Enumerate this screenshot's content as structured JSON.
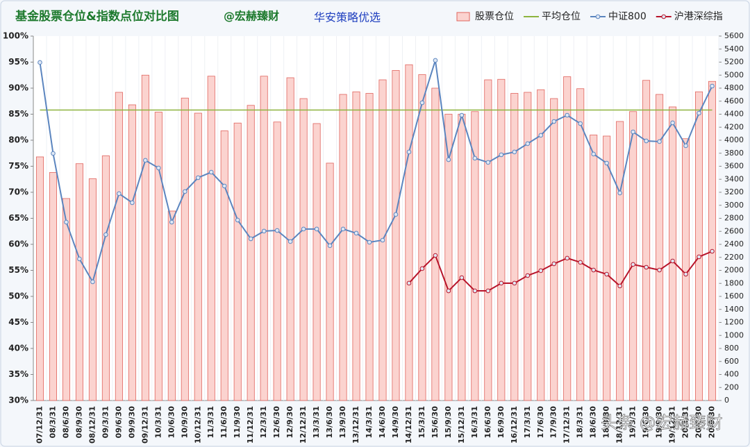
{
  "chart_data": {
    "type": "bar",
    "title": "基金股票仓位&指数点位对比图",
    "subtitle": "@宏赫臻财",
    "strategy": "华安策略优选",
    "watermark": "头条 @宏赫臻财",
    "categories": [
      "07/12/31",
      "08/3/31",
      "08/6/30",
      "08/9/30",
      "08/12/31",
      "09/3/31",
      "09/6/30",
      "09/9/30",
      "09/12/31",
      "10/3/31",
      "10/6/30",
      "10/9/30",
      "10/12/31",
      "11/3/31",
      "11/6/30",
      "11/9/30",
      "11/12/31",
      "12/3/31",
      "12/6/30",
      "12/9/30",
      "12/12/31",
      "13/3/31",
      "13/6/30",
      "13/9/30",
      "13/12/31",
      "14/3/31",
      "14/6/30",
      "14/9/30",
      "14/12/31",
      "15/3/31",
      "15/6/30",
      "15/9/30",
      "15/12/31",
      "16/3/31",
      "16/6/30",
      "16/9/30",
      "16/12/31",
      "17/3/31",
      "17/6/30",
      "17/9/30",
      "17/12/31",
      "18/3/31",
      "18/6/30",
      "18/9/30",
      "18/12/31",
      "19/3/31",
      "19/6/30",
      "19/9/30",
      "19/12/31",
      "20/3/31",
      "20/6/30",
      "20/9/30"
    ],
    "series": [
      {
        "name": "股票仓位",
        "type": "bar",
        "color": "#fbd3cf",
        "values": [
          76.8,
          73.8,
          68.8,
          75.5,
          72.6,
          77,
          89.2,
          86.8,
          92.5,
          85.4,
          66.4,
          88.1,
          85.2,
          92.3,
          81.8,
          83.3,
          86.7,
          92.3,
          83.5,
          92,
          88,
          83.2,
          75.6,
          88.8,
          89.3,
          89,
          91.6,
          93.4,
          94.5,
          92.6,
          90,
          85,
          85,
          85.5,
          91.6,
          91.7,
          89,
          89.2,
          89.7,
          88,
          92.2,
          89.9,
          81,
          80.8,
          83.6,
          85.5,
          91.5,
          88.8,
          86.4,
          80.3,
          89.3,
          91.3
        ]
      },
      {
        "name": "平均仓位",
        "type": "hline",
        "color": "#8db43e",
        "value": 85.8
      },
      {
        "name": "中证800",
        "type": "line",
        "axis": "y2",
        "color": "#5b85bf",
        "values": [
          5195,
          3797,
          2741,
          2176,
          1824,
          2549,
          3179,
          3040,
          3691,
          3573,
          2741,
          3211,
          3424,
          3509,
          3296,
          2773,
          2485,
          2603,
          2613,
          2443,
          2635,
          2635,
          2379,
          2635,
          2571,
          2432,
          2464,
          2859,
          3819,
          4576,
          5227,
          3701,
          4384,
          3723,
          3659,
          3776,
          3819,
          3947,
          4075,
          4288,
          4384,
          4256,
          3787,
          3648,
          3189,
          4128,
          3989,
          3979,
          4267,
          3915,
          4416,
          4832
        ]
      },
      {
        "name": "沪港深综指",
        "type": "line",
        "axis": "y2",
        "color": "#b8142a",
        "values": [
          null,
          null,
          null,
          null,
          null,
          null,
          null,
          null,
          null,
          null,
          null,
          null,
          null,
          null,
          null,
          null,
          null,
          null,
          null,
          null,
          null,
          null,
          null,
          null,
          null,
          null,
          null,
          null,
          1803,
          2027,
          2229,
          1685,
          1888,
          1685,
          1685,
          1803,
          1803,
          1920,
          1995,
          2101,
          2187,
          2123,
          2005,
          1941,
          1760,
          2091,
          2048,
          2005,
          2144,
          1941,
          2208,
          2293
        ]
      }
    ],
    "ylim": [
      30,
      100
    ],
    "yticks": [
      {
        "value": 30,
        "label": "30%"
      },
      {
        "value": 35,
        "label": "35%"
      },
      {
        "value": 40,
        "label": "40%"
      },
      {
        "value": 45,
        "label": "45%"
      },
      {
        "value": 50,
        "label": "50%"
      },
      {
        "value": 55,
        "label": "55%"
      },
      {
        "value": 60,
        "label": "60%"
      },
      {
        "value": 65,
        "label": "65%"
      },
      {
        "value": 70,
        "label": "70%"
      },
      {
        "value": 75,
        "label": "75%"
      },
      {
        "value": 80,
        "label": "80%"
      },
      {
        "value": 85,
        "label": "85%"
      },
      {
        "value": 90,
        "label": "90%"
      },
      {
        "value": 95,
        "label": "95%"
      },
      {
        "value": 100,
        "label": "100%"
      }
    ],
    "y2lim": [
      0,
      5600
    ],
    "y2ticks": [
      0,
      200,
      400,
      600,
      800,
      1000,
      1200,
      1400,
      1600,
      1800,
      2000,
      2200,
      2400,
      2600,
      2800,
      3000,
      3200,
      3400,
      3600,
      3800,
      4000,
      4200,
      4400,
      4600,
      4800,
      5000,
      5200,
      5400,
      5600
    ],
    "legend": "top-right"
  }
}
